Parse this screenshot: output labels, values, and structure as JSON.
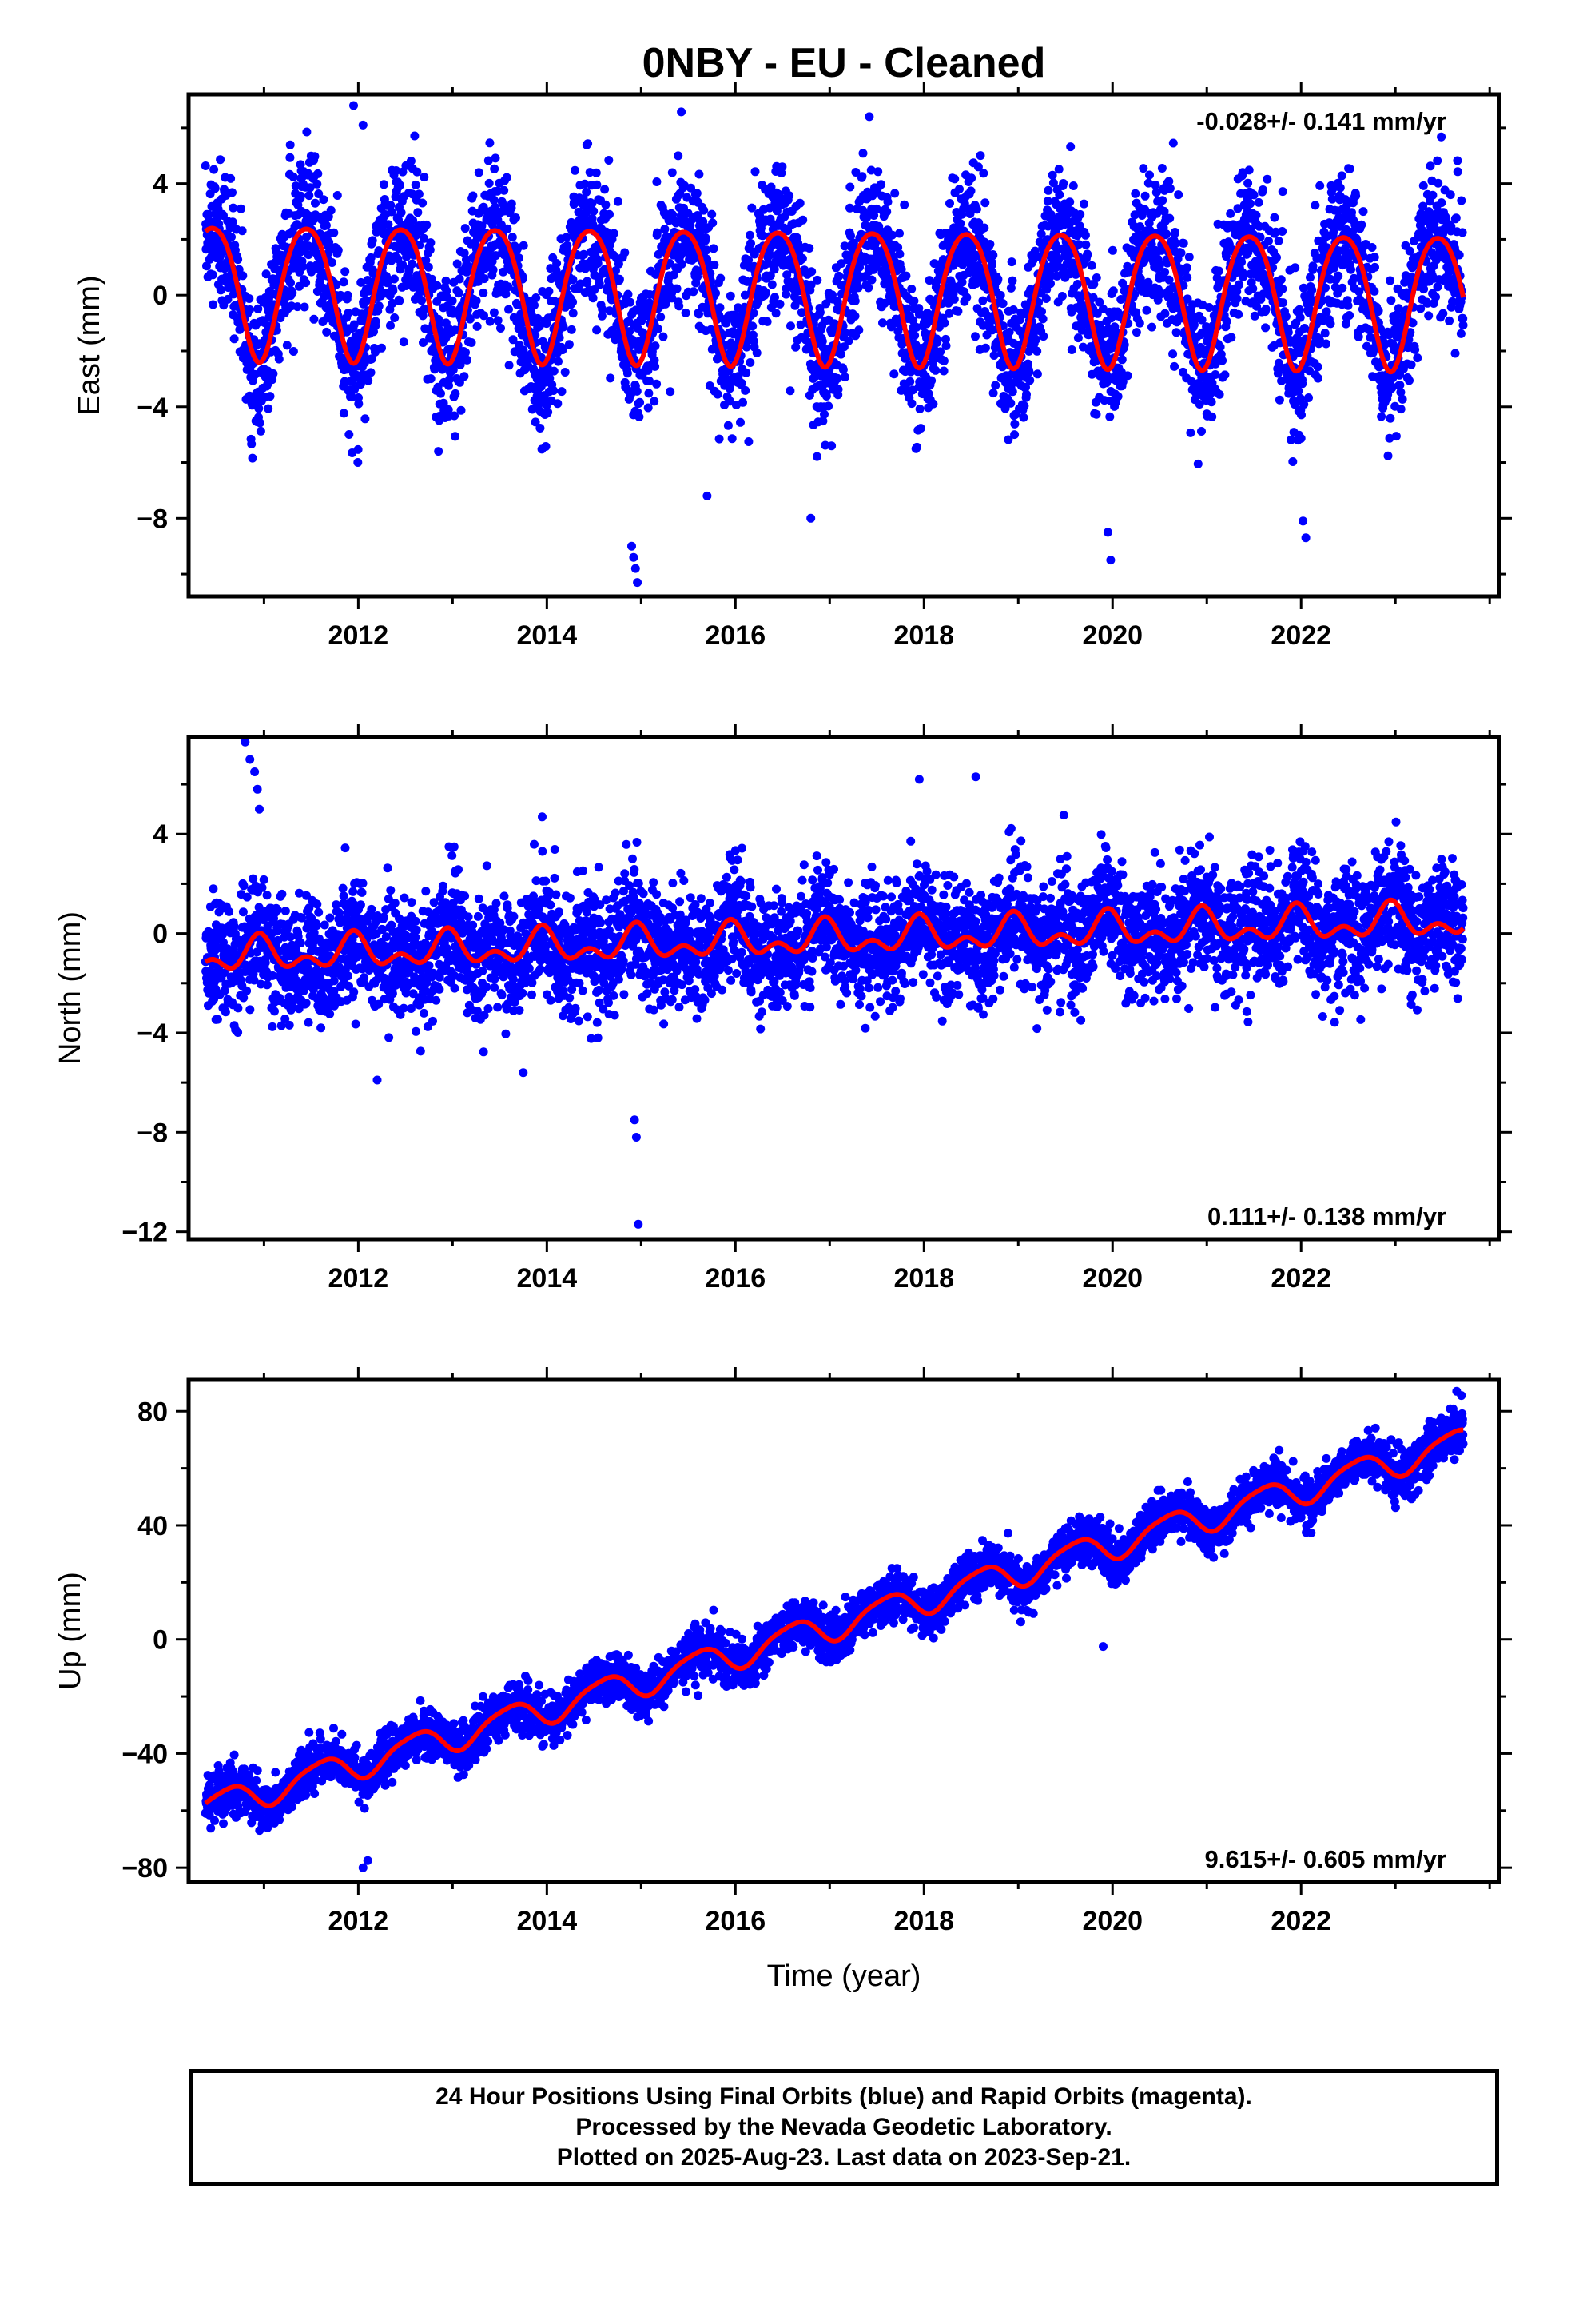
{
  "title": "0NBY  - EU - Cleaned",
  "colors": {
    "points": "#0000ff",
    "model": "#ff0000",
    "frame": "#000000"
  },
  "footer": {
    "line1": "24 Hour Positions Using Final Orbits (blue) and Rapid Orbits (magenta).",
    "line2": "Processed by the Nevada Geodetic Laboratory.",
    "line3": "Plotted on 2025-Aug-23. Last data on 2023-Sep-21."
  },
  "chart_data": [
    {
      "type": "scatter",
      "component": "east",
      "ylabel": "East (mm)",
      "xlim": [
        2010.2,
        2024.1
      ],
      "ylim": [
        -10.8,
        7.2
      ],
      "yticks": [
        -8,
        -4,
        0,
        4
      ],
      "yticklabels": [
        "−8",
        "−4",
        "0",
        "4"
      ],
      "xticks": [
        2012,
        2014,
        2016,
        2018,
        2020,
        2022
      ],
      "xticklabels": [
        "2012",
        "2014",
        "2016",
        "2018",
        "2020",
        "2022"
      ],
      "rate_label": "-0.028+/- 0.141 mm/yr",
      "rate_label_position": "top-right",
      "data_start": 2010.38,
      "data_end": 2023.72,
      "model": {
        "offset": 0.3,
        "trend_mm_per_yr": -0.028,
        "annual_amp": 2.4,
        "annual_peak": 0.45,
        "semiannual_amp": 0.3,
        "semiannual_peak": 0.2
      },
      "scatter_sigma": 1.3,
      "outliers": [
        [
          2011.95,
          6.8
        ],
        [
          2012.05,
          6.1
        ],
        [
          2014.9,
          -9.0
        ],
        [
          2014.92,
          -9.4
        ],
        [
          2014.94,
          -9.8
        ],
        [
          2014.96,
          -10.3
        ],
        [
          2017.42,
          6.4
        ],
        [
          2019.95,
          -8.5
        ],
        [
          2019.98,
          -9.5
        ],
        [
          2022.02,
          -8.1
        ],
        [
          2022.05,
          -8.7
        ],
        [
          2015.7,
          -7.2
        ],
        [
          2016.8,
          -8.0
        ],
        [
          2012.85,
          -5.6
        ]
      ]
    },
    {
      "type": "scatter",
      "component": "north",
      "ylabel": "North (mm)",
      "xlim": [
        2010.2,
        2024.1
      ],
      "ylim": [
        -12.3,
        7.9
      ],
      "yticks": [
        -12,
        -8,
        -4,
        0,
        4
      ],
      "yticklabels": [
        "−12",
        "−8",
        "−4",
        "0",
        "4"
      ],
      "xticks": [
        2012,
        2014,
        2016,
        2018,
        2020,
        2022
      ],
      "xticklabels": [
        "2012",
        "2014",
        "2016",
        "2018",
        "2020",
        "2022"
      ],
      "rate_label": "0.111+/- 0.138 mm/yr",
      "rate_label_position": "bottom-right",
      "data_start": 2010.38,
      "data_end": 2023.72,
      "model": {
        "offset": -0.95,
        "trend_mm_per_yr": 0.111,
        "annual_amp": 0.5,
        "annual_peak": 0.95,
        "semiannual_amp": 0.4,
        "semiannual_peak": 0.45
      },
      "scatter_sigma": 1.2,
      "outliers": [
        [
          2010.8,
          7.7
        ],
        [
          2010.85,
          7.0
        ],
        [
          2010.9,
          6.5
        ],
        [
          2010.93,
          5.8
        ],
        [
          2010.95,
          5.0
        ],
        [
          2014.93,
          -7.5
        ],
        [
          2014.95,
          -8.2
        ],
        [
          2014.97,
          -11.7
        ],
        [
          2017.95,
          6.2
        ],
        [
          2018.55,
          6.3
        ],
        [
          2012.2,
          -5.9
        ],
        [
          2013.75,
          -5.6
        ]
      ]
    },
    {
      "type": "scatter",
      "component": "up",
      "ylabel": "Up (mm)",
      "xlabel": "Time (year)",
      "xlim": [
        2010.2,
        2024.1
      ],
      "ylim": [
        -85,
        91
      ],
      "yticks": [
        -80,
        -40,
        0,
        40,
        80
      ],
      "yticklabels": [
        "−80",
        "−40",
        "0",
        "40",
        "80"
      ],
      "xticks": [
        2012,
        2014,
        2016,
        2018,
        2020,
        2022
      ],
      "xticklabels": [
        "2012",
        "2014",
        "2016",
        "2018",
        "2020",
        "2022"
      ],
      "rate_label": "9.615+/- 0.605 mm/yr",
      "rate_label_position": "bottom-right",
      "data_start": 2010.38,
      "data_end": 2023.72,
      "model": {
        "offset": -53,
        "trend_mm_per_yr": 9.615,
        "annual_amp": 5.0,
        "annual_peak": 0.6,
        "semiannual_amp": 1.0,
        "semiannual_peak": 0.3,
        "ref_year": 2011.0
      },
      "scatter_sigma": 4.0,
      "outliers": [
        [
          2012.05,
          -80.0
        ],
        [
          2012.1,
          -77.5
        ],
        [
          2019.9,
          -2.5
        ],
        [
          2023.65,
          87.0
        ],
        [
          2023.7,
          85.5
        ]
      ]
    }
  ]
}
